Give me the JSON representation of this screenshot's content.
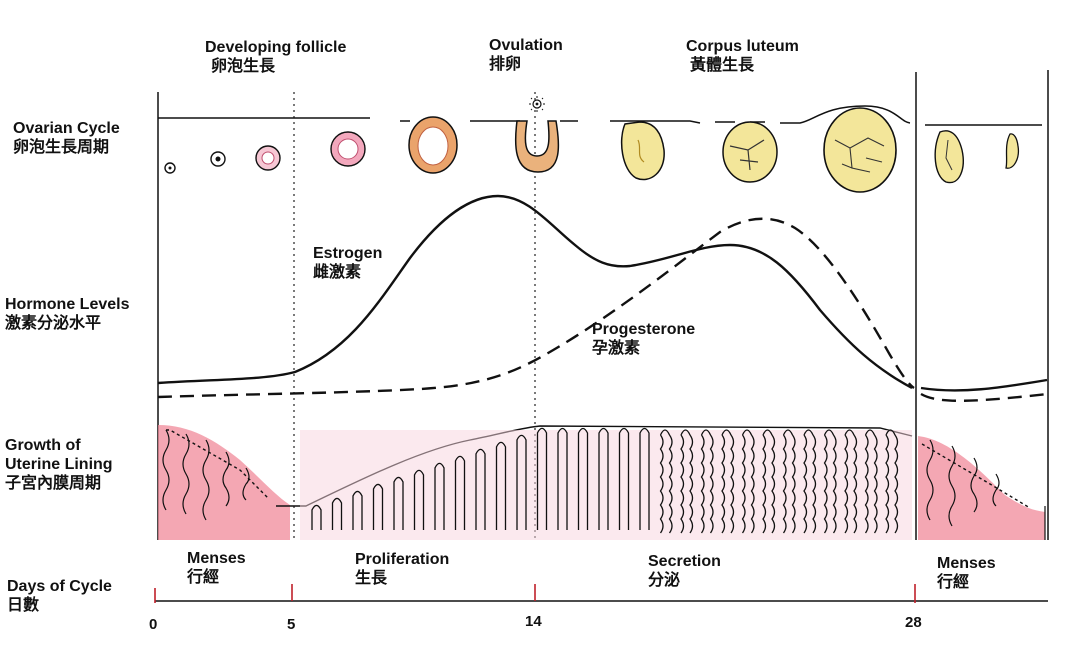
{
  "stages": {
    "developing_follicle": {
      "en": "Developing follicle",
      "zh": "卵泡生長"
    },
    "ovulation": {
      "en": "Ovulation",
      "zh": "排卵"
    },
    "corpus_luteum": {
      "en": "Corpus luteum",
      "zh": "黃體生長"
    }
  },
  "rows": {
    "ovarian_cycle": {
      "en": "Ovarian Cycle",
      "zh": "卵泡生長周期"
    },
    "hormone_levels": {
      "en": "Hormone Levels",
      "zh": "激素分泌水平"
    },
    "uterine_lining": {
      "en1": "Growth of",
      "en2": "Uterine Lining",
      "zh": "子宮內膜周期"
    },
    "days_of_cycle": {
      "en": "Days of Cycle",
      "zh": "日數"
    }
  },
  "hormones": {
    "estrogen": {
      "en": "Estrogen",
      "zh": "雌激素"
    },
    "progesterone": {
      "en": "Progesterone",
      "zh": "孕激素"
    }
  },
  "phases": {
    "menses_start": {
      "en": "Menses",
      "zh": "行經"
    },
    "proliferation": {
      "en": "Proliferation",
      "zh": "生長"
    },
    "secretion": {
      "en": "Secretion",
      "zh": "分泌"
    },
    "menses_end": {
      "en": "Menses",
      "zh": "行經"
    }
  },
  "days": [
    "0",
    "5",
    "14",
    "28"
  ],
  "colors": {
    "follicle_pink": "#e06a8a",
    "follicle_orange": "#e8a860",
    "luteum_yellow": "#f3e69a",
    "lining_red": "#e0334a",
    "lining_pink": "#f2b6c8",
    "line": "#111111"
  }
}
